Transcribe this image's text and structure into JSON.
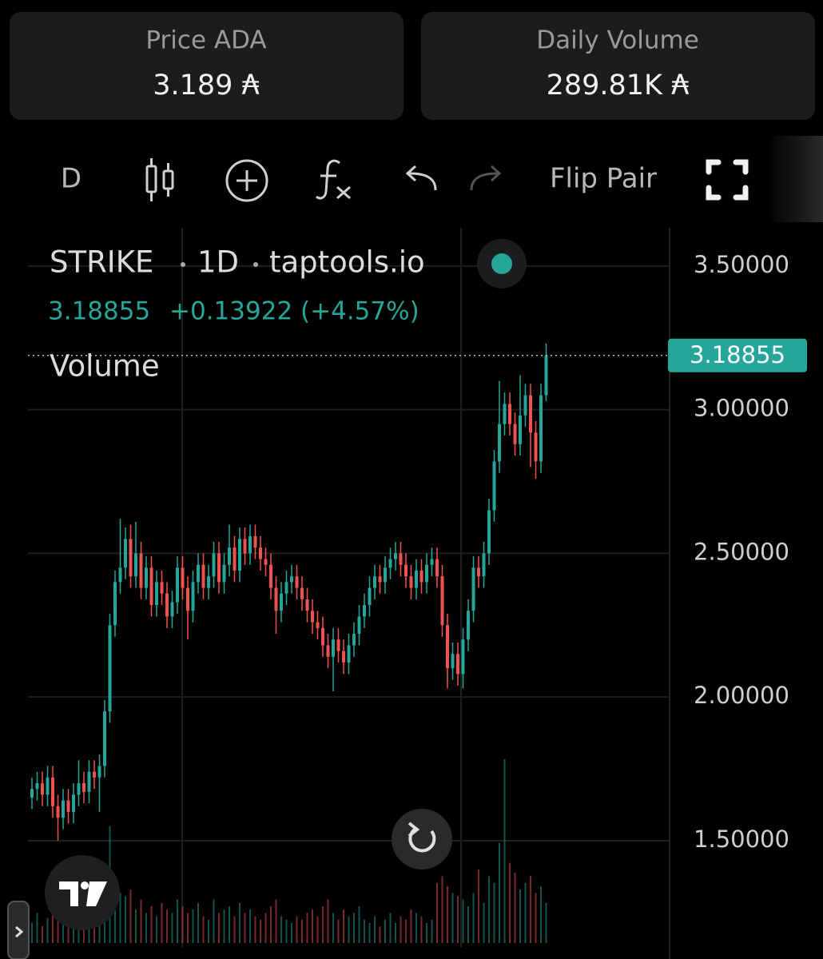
{
  "stats": [
    {
      "label": "Price ADA",
      "value": "3.189 ₳"
    },
    {
      "label": "Daily Volume",
      "value": "289.81K ₳"
    }
  ],
  "toolbar": {
    "interval": "D",
    "flip": "Flip Pair"
  },
  "chart_data": {
    "type": "candlestick",
    "symbol": "STRIKE",
    "interval": "1D",
    "source": "taptools.io",
    "last_price": 3.18855,
    "change": "+0.13922 (+4.57%)",
    "volume_label": "Volume",
    "up_color": "#26a69a",
    "down_color": "#ef5350",
    "ylim": [
      1.13,
      3.633
    ],
    "yticks": [
      {
        "value": 1.5,
        "label": "1.50000"
      },
      {
        "value": 2,
        "label": "2.00000"
      },
      {
        "value": 2.5,
        "label": "2.50000"
      },
      {
        "value": 3,
        "label": "3.00000"
      },
      {
        "value": 3.5,
        "label": "3.50000"
      }
    ],
    "grid": true,
    "open": [
      1.65,
      1.68,
      1.7,
      1.66,
      1.72,
      1.62,
      1.58,
      1.64,
      1.6,
      1.66,
      1.7,
      1.67,
      1.74,
      1.72,
      1.76,
      1.95,
      2.25,
      2.4,
      2.45,
      2.55,
      2.42,
      2.5,
      2.38,
      2.45,
      2.32,
      2.4,
      2.36,
      2.28,
      2.33,
      2.45,
      2.38,
      2.3,
      2.4,
      2.46,
      2.38,
      2.42,
      2.5,
      2.4,
      2.46,
      2.52,
      2.44,
      2.55,
      2.5,
      2.56,
      2.52,
      2.48,
      2.46,
      2.38,
      2.3,
      2.36,
      2.4,
      2.42,
      2.38,
      2.34,
      2.3,
      2.26,
      2.24,
      2.18,
      2.14,
      2.2,
      2.16,
      2.12,
      2.18,
      2.22,
      2.28,
      2.32,
      2.38,
      2.42,
      2.4,
      2.45,
      2.48,
      2.5,
      2.46,
      2.42,
      2.38,
      2.44,
      2.4,
      2.46,
      2.48,
      2.42,
      2.25,
      2.1,
      2.15,
      2.08,
      2.2,
      2.3,
      2.45,
      2.42,
      2.5,
      2.65,
      2.82,
      2.95,
      3.02,
      2.95,
      2.88,
      2.98,
      3.05,
      2.92,
      2.82,
      3.05
    ],
    "high": [
      1.72,
      1.74,
      1.74,
      1.76,
      1.76,
      1.66,
      1.68,
      1.68,
      1.7,
      1.78,
      1.74,
      1.78,
      1.78,
      1.8,
      1.99,
      2.29,
      2.44,
      2.62,
      2.59,
      2.6,
      2.61,
      2.54,
      2.49,
      2.49,
      2.44,
      2.44,
      2.4,
      2.37,
      2.49,
      2.49,
      2.42,
      2.44,
      2.5,
      2.5,
      2.46,
      2.54,
      2.54,
      2.5,
      2.6,
      2.56,
      2.59,
      2.59,
      2.6,
      2.6,
      2.56,
      2.52,
      2.5,
      2.42,
      2.4,
      2.44,
      2.46,
      2.46,
      2.42,
      2.38,
      2.34,
      2.3,
      2.28,
      2.22,
      2.24,
      2.24,
      2.2,
      2.22,
      2.26,
      2.32,
      2.36,
      2.42,
      2.46,
      2.46,
      2.49,
      2.52,
      2.54,
      2.54,
      2.5,
      2.46,
      2.48,
      2.48,
      2.5,
      2.52,
      2.52,
      2.46,
      2.29,
      2.19,
      2.19,
      2.24,
      2.34,
      2.49,
      2.49,
      2.54,
      2.69,
      2.86,
      3.1,
      3.06,
      3.06,
      2.99,
      3.12,
      3.09,
      3.09,
      2.96,
      3.09,
      3.23
    ],
    "low": [
      1.61,
      1.64,
      1.62,
      1.62,
      1.58,
      1.5,
      1.54,
      1.56,
      1.56,
      1.62,
      1.63,
      1.63,
      1.68,
      1.6,
      1.72,
      1.91,
      2.21,
      2.36,
      2.41,
      2.38,
      2.38,
      2.34,
      2.34,
      2.28,
      2.28,
      2.32,
      2.24,
      2.24,
      2.29,
      2.34,
      2.2,
      2.26,
      2.36,
      2.34,
      2.34,
      2.38,
      2.36,
      2.36,
      2.42,
      2.4,
      2.4,
      2.46,
      2.46,
      2.48,
      2.44,
      2.42,
      2.34,
      2.22,
      2.26,
      2.32,
      2.36,
      2.34,
      2.3,
      2.26,
      2.22,
      2.2,
      2.14,
      2.1,
      2.02,
      2.12,
      2.08,
      2.08,
      2.14,
      2.18,
      2.24,
      2.28,
      2.34,
      2.36,
      2.36,
      2.41,
      2.44,
      2.42,
      2.38,
      2.34,
      2.34,
      2.36,
      2.36,
      2.42,
      2.38,
      2.21,
      2.03,
      2.06,
      2.04,
      2.03,
      2.16,
      2.26,
      2.38,
      2.38,
      2.46,
      2.61,
      2.78,
      2.91,
      2.91,
      2.84,
      2.84,
      2.94,
      2.8,
      2.76,
      2.78,
      3.03
    ],
    "close": [
      1.68,
      1.7,
      1.66,
      1.72,
      1.62,
      1.58,
      1.64,
      1.6,
      1.66,
      1.7,
      1.67,
      1.74,
      1.72,
      1.76,
      1.95,
      2.25,
      2.4,
      2.45,
      2.55,
      2.42,
      2.5,
      2.38,
      2.45,
      2.32,
      2.4,
      2.36,
      2.28,
      2.33,
      2.45,
      2.38,
      2.3,
      2.4,
      2.46,
      2.38,
      2.42,
      2.5,
      2.4,
      2.46,
      2.52,
      2.44,
      2.55,
      2.5,
      2.56,
      2.52,
      2.48,
      2.46,
      2.38,
      2.3,
      2.36,
      2.4,
      2.42,
      2.38,
      2.34,
      2.3,
      2.26,
      2.24,
      2.18,
      2.14,
      2.2,
      2.16,
      2.12,
      2.18,
      2.22,
      2.28,
      2.32,
      2.38,
      2.42,
      2.4,
      2.45,
      2.48,
      2.5,
      2.46,
      2.42,
      2.38,
      2.44,
      2.4,
      2.46,
      2.48,
      2.42,
      2.25,
      2.1,
      2.15,
      2.08,
      2.2,
      2.3,
      2.45,
      2.42,
      2.5,
      2.65,
      2.82,
      2.95,
      3.02,
      2.95,
      2.88,
      2.98,
      3.05,
      2.92,
      2.82,
      3.05,
      3.18855
    ],
    "volume": [
      12,
      18,
      10,
      15,
      20,
      14,
      22,
      16,
      12,
      18,
      14,
      20,
      16,
      24,
      40,
      70,
      35,
      30,
      28,
      32,
      20,
      26,
      18,
      22,
      16,
      24,
      20,
      18,
      26,
      22,
      18,
      20,
      24,
      16,
      14,
      26,
      18,
      20,
      22,
      16,
      24,
      18,
      20,
      16,
      14,
      18,
      22,
      26,
      16,
      14,
      12,
      16,
      14,
      18,
      20,
      16,
      22,
      26,
      18,
      14,
      20,
      16,
      18,
      22,
      14,
      12,
      16,
      10,
      14,
      18,
      12,
      16,
      14,
      20,
      18,
      16,
      12,
      14,
      36,
      40,
      34,
      30,
      28,
      26,
      22,
      30,
      44,
      24,
      40,
      36,
      60,
      110,
      48,
      42,
      32,
      36,
      40,
      30,
      34,
      24
    ]
  }
}
